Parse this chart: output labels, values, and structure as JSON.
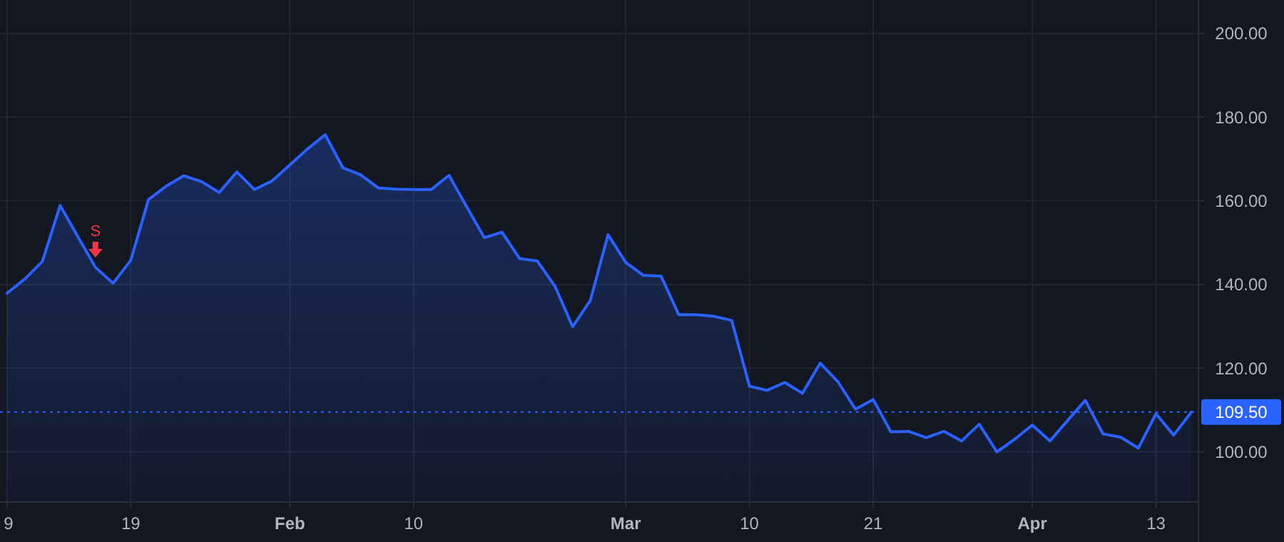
{
  "chart_data": {
    "type": "area",
    "categories": [
      "9",
      null,
      null,
      null,
      null,
      null,
      null,
      "19",
      null,
      null,
      null,
      null,
      null,
      null,
      null,
      null,
      "Feb",
      null,
      null,
      null,
      null,
      null,
      null,
      "10",
      null,
      null,
      null,
      null,
      null,
      null,
      null,
      null,
      null,
      null,
      null,
      "Mar",
      null,
      null,
      null,
      null,
      null,
      null,
      "10",
      null,
      null,
      null,
      null,
      null,
      null,
      "21",
      null,
      null,
      null,
      null,
      null,
      null,
      null,
      null,
      "Apr",
      null,
      null,
      null,
      null,
      null,
      null,
      "13",
      null,
      null
    ],
    "series": [
      {
        "color": "#2962ff",
        "values": [
          137.9,
          141.3,
          145.5,
          158.9,
          151.5,
          144.1,
          140.3,
          145.8,
          160.3,
          163.5,
          166,
          164.6,
          162,
          166.9,
          162.7,
          164.8,
          168.6,
          172.4,
          175.8,
          167.9,
          166.2,
          163.1,
          162.8,
          162.7,
          162.7,
          166.1,
          158.6,
          151.2,
          152.5,
          146.2,
          145.6,
          139.6,
          129.9,
          136.2,
          151.9,
          145.3,
          142.2,
          142,
          132.8,
          132.8,
          132.4,
          131.4,
          115.7,
          114.7,
          116.6,
          114,
          121.2,
          116.8,
          110.2,
          112.5,
          104.8,
          104.9,
          103.4,
          104.9,
          102.6,
          106.6,
          100,
          103,
          106.4,
          102.6,
          107.5,
          112.3,
          104.3,
          103.5,
          100.9,
          109.1,
          104,
          109.5
        ]
      }
    ],
    "ylim": [
      88,
      208
    ],
    "yticks": [
      {
        "value": 100,
        "label": "100.00"
      },
      {
        "value": 120,
        "label": "120.00"
      },
      {
        "value": 140,
        "label": "140.00"
      },
      {
        "value": 160,
        "label": "160.00"
      },
      {
        "value": 180,
        "label": "180.00"
      },
      {
        "value": 200,
        "label": "200.00"
      }
    ],
    "ref_lines": [
      {
        "axis": "y",
        "value": 109.5,
        "label": "109.50",
        "color": "#2962ff",
        "line_style": "dotted"
      }
    ],
    "annotations": [
      {
        "text": "S",
        "y": 144.1
      }
    ],
    "grid": true
  }
}
